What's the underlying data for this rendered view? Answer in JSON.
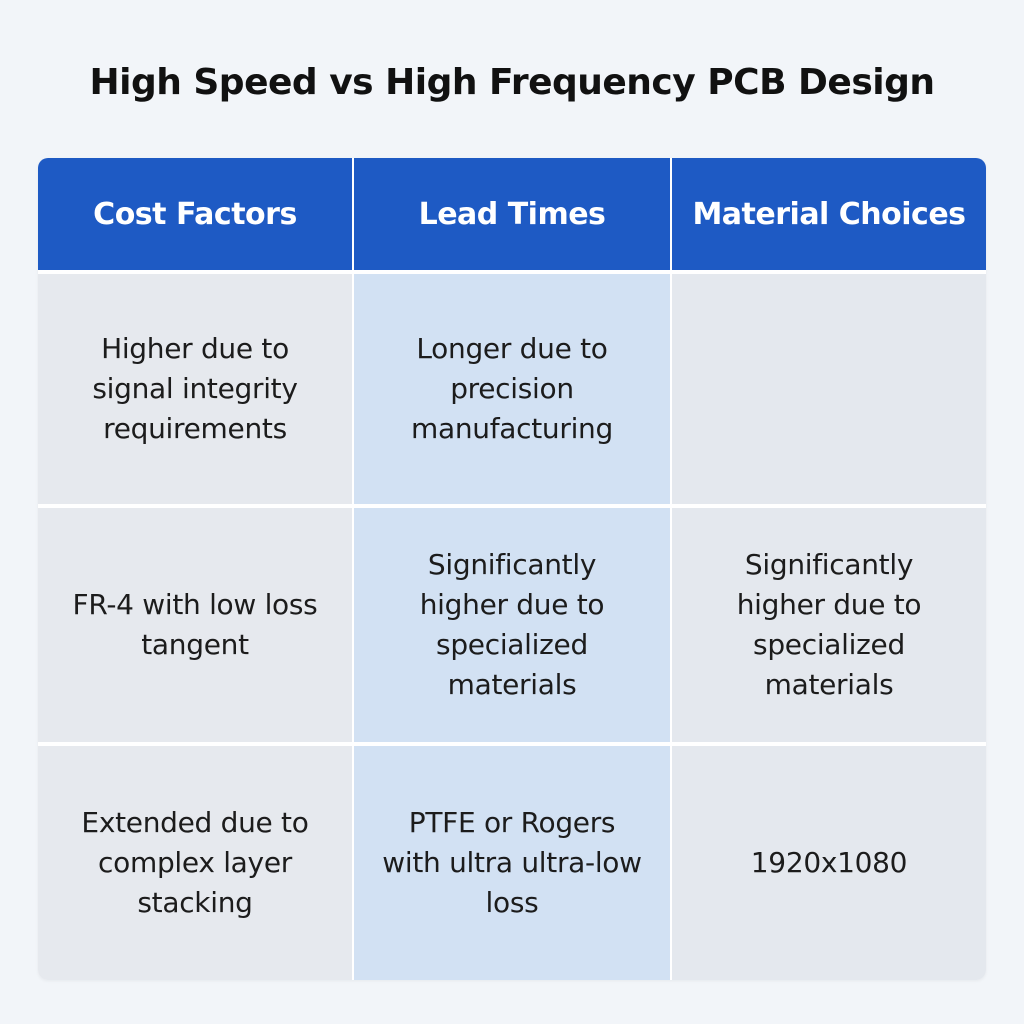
{
  "title": "High Speed vs High Frequency PCB Design",
  "table": {
    "headers": [
      "Cost Factors",
      "Lead Times",
      "Material Choices"
    ],
    "rows": [
      [
        "Higher due to signal integrity requirements",
        "Longer due to precision manufacturing",
        ""
      ],
      [
        "FR-4 with low loss tangent",
        "Significantly higher due to specialized materials",
        "Significantly higher due to specialized materials"
      ],
      [
        "Extended due to complex layer stacking",
        "PTFE or Rogers with ultra ultra-low loss",
        "1920x1080"
      ]
    ]
  },
  "colors": {
    "header_bg": "#1e5ac4",
    "header_text": "#ffffff",
    "cell_gray": "#e6e9ee",
    "cell_blue": "#d2e1f3",
    "page_bg": "#f2f5f9"
  }
}
